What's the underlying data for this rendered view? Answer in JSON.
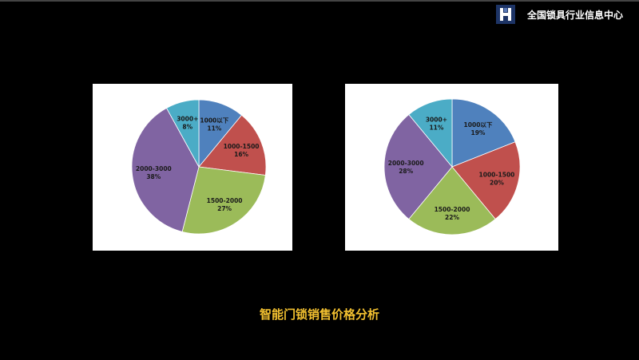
{
  "header": {
    "brand": "全国锁具行业信息中心",
    "logo_letter": "H",
    "logo_color": "#1d3466"
  },
  "caption": "智能门锁销售价格分析",
  "chart_data": [
    {
      "type": "pie",
      "start": "12 o'clock, clockwise",
      "categories": [
        "1000以下",
        "1000-1500",
        "1500-2000",
        "2000-3000",
        "3000+"
      ],
      "values": [
        11,
        16,
        27,
        38,
        8
      ],
      "labels": [
        "11%",
        "16%",
        "27%",
        "38%",
        "8%"
      ],
      "colors": [
        "#4f81bd",
        "#c0504d",
        "#9bbb59",
        "#8064a2",
        "#4bacc6"
      ]
    },
    {
      "type": "pie",
      "start": "12 o'clock, clockwise",
      "categories": [
        "1000以下",
        "1000-1500",
        "1500-2000",
        "2000-3000",
        "3000+"
      ],
      "values": [
        19,
        20,
        22,
        28,
        11
      ],
      "labels": [
        "19%",
        "20%",
        "22%",
        "28%",
        "11%"
      ],
      "colors": [
        "#4f81bd",
        "#c0504d",
        "#9bbb59",
        "#8064a2",
        "#4bacc6"
      ]
    }
  ]
}
